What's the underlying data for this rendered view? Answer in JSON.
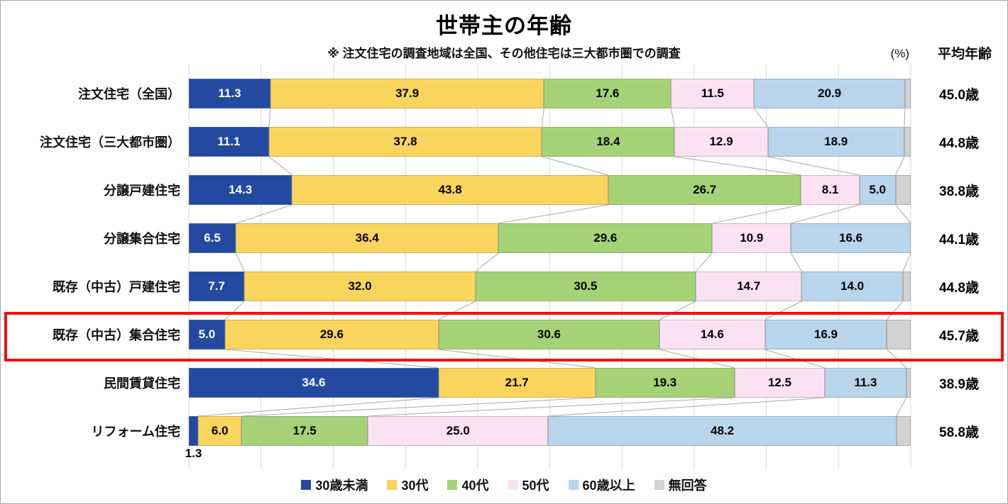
{
  "title": "世帯主の年齢",
  "subtitle": "※ 注文住宅の調査地域は全国、その他住宅は三大都市圏での調査",
  "unit_label": "(%)",
  "avg_header": "平均年齢",
  "highlight_color": "#F50D0D",
  "chart_data": {
    "type": "bar",
    "stacked": true,
    "orientation": "horizontal",
    "xlim": [
      0,
      100
    ],
    "grid_step_percent": 10,
    "series": [
      "30歳未満",
      "30代",
      "40代",
      "50代",
      "60歳以上",
      "無回答"
    ],
    "colors": [
      "#2349A0",
      "#FAD55E",
      "#A6D277",
      "#FBE2F3",
      "#B8D5EC",
      "#D2D2D2"
    ],
    "rows": [
      {
        "category": "注文住宅（全国）",
        "values": [
          "11.3",
          "37.9",
          "17.6",
          "11.5",
          "20.9"
        ],
        "average": "45.0歳"
      },
      {
        "category": "注文住宅（三大都市圏）",
        "values": [
          "11.1",
          "37.8",
          "18.4",
          "12.9",
          "18.9"
        ],
        "average": "44.8歳"
      },
      {
        "category": "分譲戸建住宅",
        "values": [
          "14.3",
          "43.8",
          "26.7",
          "8.1",
          "5.0"
        ],
        "average": "38.8歳"
      },
      {
        "category": "分譲集合住宅",
        "values": [
          "6.5",
          "36.4",
          "29.6",
          "10.9",
          "16.6"
        ],
        "average": "44.1歳"
      },
      {
        "category": "既存（中古）戸建住宅",
        "values": [
          "7.7",
          "32.0",
          "30.5",
          "14.7",
          "14.0"
        ],
        "average": "44.8歳"
      },
      {
        "category": "既存（中古）集合住宅",
        "values": [
          "5.0",
          "29.6",
          "30.6",
          "14.6",
          "16.9"
        ],
        "average": "45.7歳",
        "highlighted": true
      },
      {
        "category": "民間賃貸住宅",
        "values": [
          "34.6",
          "21.7",
          "19.3",
          "12.5",
          "11.3"
        ],
        "average": "38.9歳"
      },
      {
        "category": "リフォーム住宅",
        "values": [
          "1.3",
          "6.0",
          "17.5",
          "25.0",
          "48.2"
        ],
        "average": "58.8歳",
        "first_label_below": true
      }
    ]
  },
  "legend": [
    "30歳未満",
    "30代",
    "40代",
    "50代",
    "60歳以上",
    "無回答"
  ]
}
